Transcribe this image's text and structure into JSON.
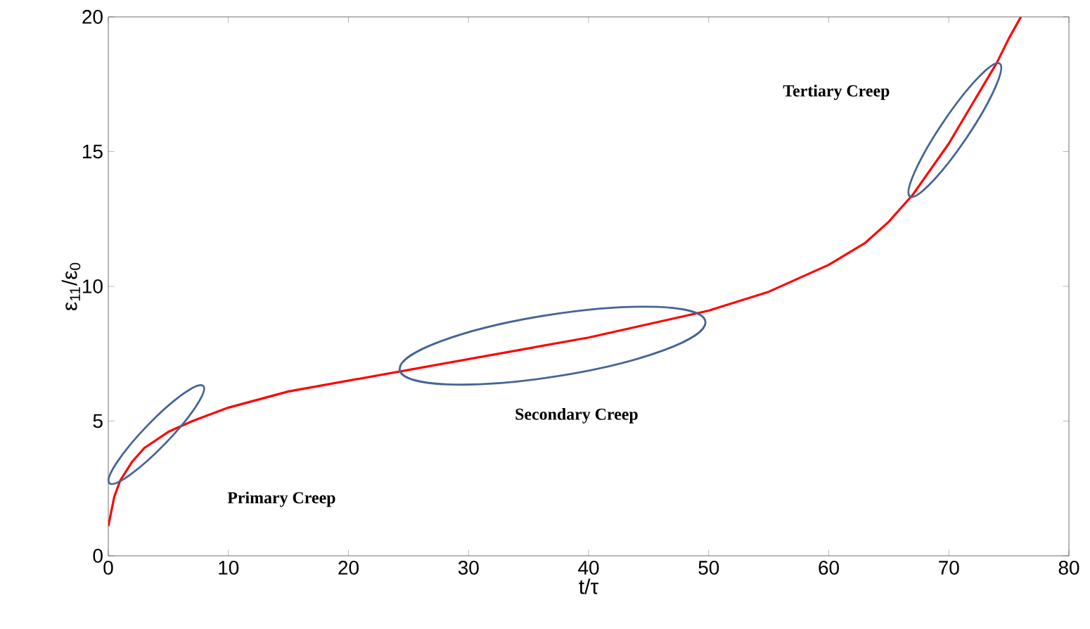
{
  "chart_data": {
    "type": "line",
    "xlabel": "t/τ",
    "ylabel": "ε$_{11}$/ε$_{0}$",
    "xlim": [
      0,
      80
    ],
    "ylim": [
      0,
      20
    ],
    "xticks": [
      0,
      10,
      20,
      30,
      40,
      50,
      60,
      70,
      80
    ],
    "yticks": [
      0,
      5,
      10,
      15,
      20
    ],
    "grid": false,
    "marker": "none",
    "line_style": "solid",
    "series": [
      {
        "color": "#ff0000",
        "x": [
          0,
          0.5,
          1,
          2,
          3,
          5,
          7,
          10,
          15,
          20,
          25,
          30,
          35,
          40,
          45,
          50,
          55,
          60,
          63,
          65,
          67,
          70,
          72,
          74,
          75,
          76
        ],
        "values": [
          1.1,
          2.2,
          2.8,
          3.5,
          4.0,
          4.6,
          5.0,
          5.5,
          6.1,
          6.5,
          6.9,
          7.3,
          7.7,
          8.1,
          8.6,
          9.1,
          9.8,
          10.8,
          11.6,
          12.4,
          13.4,
          15.3,
          16.8,
          18.3,
          19.2,
          20
        ]
      }
    ],
    "annotations": [
      "Primary Creep",
      "Secondary Creep",
      "Tertiary Creep"
    ]
  }
}
